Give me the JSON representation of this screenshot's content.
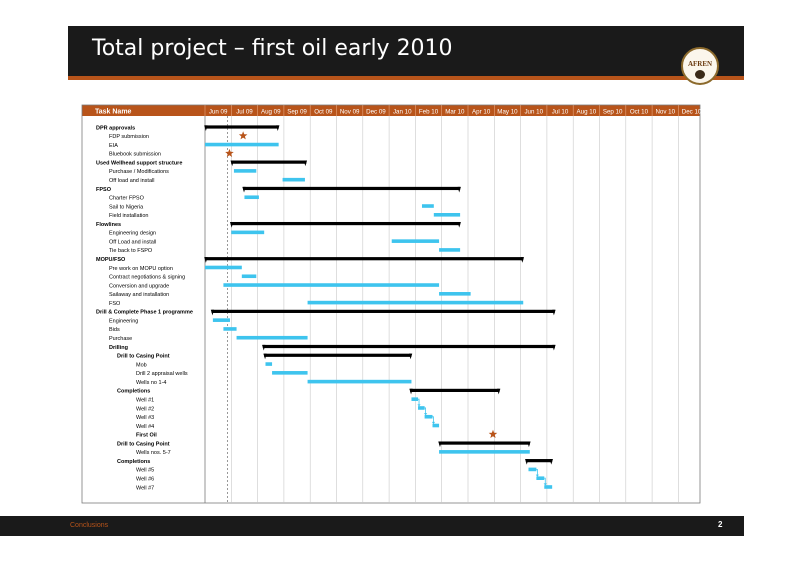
{
  "slide": {
    "title": "Total project – first oil early 2010",
    "footer_section": "Conclusions",
    "page_number": "2"
  },
  "logo": {
    "text": "AFREN"
  },
  "colors": {
    "header_bg": "#1a1a1a",
    "accent": "#b8541a",
    "summary_bar": "#000000",
    "task_bar": "#3ec4ee",
    "milestone": "#b8541a",
    "grid": "#c8c8c8"
  },
  "gantt": {
    "column_header": "Task Name",
    "months": [
      "Jun 09",
      "Jul 09",
      "Aug 09",
      "Sep 09",
      "Oct 09",
      "Nov 09",
      "Dec 09",
      "Jan 10",
      "Feb 10",
      "Mar 10",
      "Apr 10",
      "May 10",
      "Jun 10",
      "Jul 10",
      "Aug 10",
      "Sep 10",
      "Oct 10",
      "Nov 10",
      "Dec 10"
    ],
    "tasks": [
      {
        "name": "DPR approvals",
        "level": 0,
        "bold": true,
        "type": "summary",
        "start": 0,
        "end": 2.8
      },
      {
        "name": "FDP submission",
        "level": 1,
        "bold": false,
        "type": "milestone",
        "at": 1.45
      },
      {
        "name": "EIA",
        "level": 1,
        "bold": false,
        "type": "task",
        "start": 0,
        "end": 2.8
      },
      {
        "name": "Bluebook submission",
        "level": 1,
        "bold": false,
        "type": "milestone",
        "at": 0.93
      },
      {
        "name": "Used Wellhead support structure",
        "level": 0,
        "bold": true,
        "type": "summary",
        "start": 1.0,
        "end": 3.85
      },
      {
        "name": "Purchase / Modifications",
        "level": 1,
        "bold": false,
        "type": "task",
        "start": 1.1,
        "end": 1.95
      },
      {
        "name": "Off load and install",
        "level": 1,
        "bold": false,
        "type": "task",
        "start": 2.95,
        "end": 3.8
      },
      {
        "name": "FPSO",
        "level": 0,
        "bold": true,
        "type": "summary",
        "start": 1.45,
        "end": 9.7
      },
      {
        "name": "Charter FPSO",
        "level": 1,
        "bold": false,
        "type": "task",
        "start": 1.5,
        "end": 2.05
      },
      {
        "name": "Sail to Nigeria",
        "level": 1,
        "bold": false,
        "type": "task",
        "start": 8.25,
        "end": 8.7
      },
      {
        "name": "Field installation",
        "level": 1,
        "bold": false,
        "type": "task",
        "start": 8.7,
        "end": 9.7
      },
      {
        "name": "Flowlines",
        "level": 0,
        "bold": true,
        "type": "summary",
        "start": 0.98,
        "end": 9.7
      },
      {
        "name": "Engineering design",
        "level": 1,
        "bold": false,
        "type": "task",
        "start": 1.0,
        "end": 2.25
      },
      {
        "name": "Off Load and install",
        "level": 1,
        "bold": false,
        "type": "task",
        "start": 7.1,
        "end": 8.9
      },
      {
        "name": "Tie back to FSPO",
        "level": 1,
        "bold": false,
        "type": "task",
        "start": 8.9,
        "end": 9.7
      },
      {
        "name": "MOPU/FSO",
        "level": 0,
        "bold": true,
        "type": "summary",
        "start": 0,
        "end": 12.1
      },
      {
        "name": "Pre work on MOPU option",
        "level": 1,
        "bold": false,
        "type": "task",
        "start": 0,
        "end": 1.4
      },
      {
        "name": "Contract negotiations & signing",
        "level": 1,
        "bold": false,
        "type": "task",
        "start": 1.4,
        "end": 1.95
      },
      {
        "name": "Conversion and upgrade",
        "level": 1,
        "bold": false,
        "type": "task",
        "start": 0.7,
        "end": 8.9
      },
      {
        "name": "Sailaway and installation",
        "level": 1,
        "bold": false,
        "type": "task",
        "start": 8.9,
        "end": 10.1
      },
      {
        "name": "FSO",
        "level": 1,
        "bold": false,
        "type": "task",
        "start": 3.9,
        "end": 12.1
      },
      {
        "name": "Drill & Complete Phase 1 programme",
        "level": 0,
        "bold": true,
        "type": "summary",
        "start": 0.25,
        "end": 13.3
      },
      {
        "name": "Engineering",
        "level": 1,
        "bold": false,
        "type": "task",
        "start": 0.3,
        "end": 0.95
      },
      {
        "name": "Bids",
        "level": 1,
        "bold": false,
        "type": "task",
        "start": 0.7,
        "end": 1.2
      },
      {
        "name": "Purchase",
        "level": 1,
        "bold": false,
        "type": "task",
        "start": 1.2,
        "end": 3.9
      },
      {
        "name": "Drilling",
        "level": 1,
        "bold": true,
        "type": "summary",
        "start": 2.2,
        "end": 13.3
      },
      {
        "name": "Drill to Casing Point",
        "level": 2,
        "bold": true,
        "type": "summary",
        "start": 2.25,
        "end": 7.85
      },
      {
        "name": "Mob",
        "level": 3,
        "bold": false,
        "type": "task",
        "start": 2.3,
        "end": 2.55
      },
      {
        "name": "Drill 2 appraisal wells",
        "level": 3,
        "bold": false,
        "type": "task",
        "start": 2.55,
        "end": 3.9
      },
      {
        "name": "Wells no 1-4",
        "level": 3,
        "bold": false,
        "type": "task",
        "start": 3.9,
        "end": 7.85
      },
      {
        "name": "Completions",
        "level": 2,
        "bold": true,
        "type": "summary",
        "start": 7.8,
        "end": 11.2
      },
      {
        "name": "Well #1",
        "level": 3,
        "bold": false,
        "type": "task",
        "start": 7.85,
        "end": 8.1
      },
      {
        "name": "Well #2",
        "level": 3,
        "bold": false,
        "type": "task",
        "start": 8.1,
        "end": 8.35
      },
      {
        "name": "Well #3",
        "level": 3,
        "bold": false,
        "type": "task",
        "start": 8.35,
        "end": 8.65
      },
      {
        "name": "Well #4",
        "level": 3,
        "bold": false,
        "type": "task",
        "start": 8.65,
        "end": 8.9
      },
      {
        "name": "First Oil",
        "level": 3,
        "bold": true,
        "type": "milestone",
        "at": 10.95
      },
      {
        "name": "Drill to Casing Point",
        "level": 2,
        "bold": true,
        "type": "summary",
        "start": 8.9,
        "end": 12.35
      },
      {
        "name": "Wells nos. 5-7",
        "level": 3,
        "bold": false,
        "type": "task",
        "start": 8.9,
        "end": 12.35
      },
      {
        "name": "Completions",
        "level": 2,
        "bold": true,
        "type": "summary",
        "start": 12.2,
        "end": 13.2
      },
      {
        "name": "Well #5",
        "level": 3,
        "bold": false,
        "type": "task",
        "start": 12.3,
        "end": 12.6
      },
      {
        "name": "Well #6",
        "level": 3,
        "bold": false,
        "type": "task",
        "start": 12.6,
        "end": 12.9
      },
      {
        "name": "Well #7",
        "level": 3,
        "bold": false,
        "type": "task",
        "start": 12.9,
        "end": 13.2
      }
    ]
  }
}
